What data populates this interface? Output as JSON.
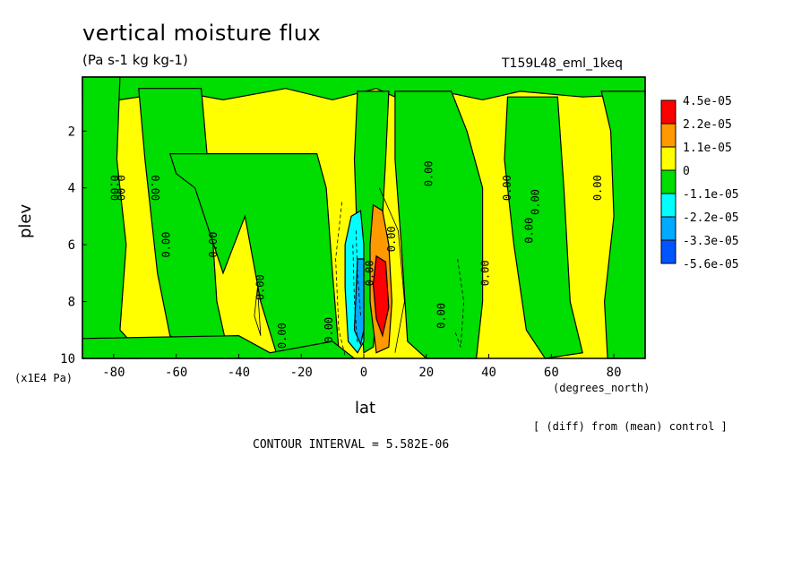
{
  "chart_data": {
    "type": "heatmap",
    "title": "vertical moisture flux",
    "units": "(Pa s-1 kg kg-1)",
    "run_label": "T159L48_eml_1keq",
    "xlabel": "lat",
    "x_unit": "(degrees_north)",
    "ylabel": "plev",
    "y_unit": "(x1E4 Pa)",
    "xlim": [
      -90,
      90
    ],
    "ylim": [
      10,
      0.1
    ],
    "x_ticks": [
      -80,
      -60,
      -40,
      -20,
      0,
      20,
      40,
      60,
      80
    ],
    "x_tick_labels": [
      "-80",
      "-60",
      "-40",
      "-20",
      "0",
      "20",
      "40",
      "60",
      "80"
    ],
    "y_ticks": [
      2,
      4,
      6,
      8,
      10
    ],
    "y_tick_labels": [
      "2",
      "4",
      "6",
      "8",
      "10"
    ],
    "note": "[ (diff) from (mean) control ]",
    "contour_interval": "CONTOUR INTERVAL = 5.582E-06",
    "contour_label": "0.00",
    "legend": {
      "placement": "right",
      "levels": [
        "4.5e-05",
        "2.2e-05",
        "1.1e-05",
        "0",
        "-1.1e-05",
        "-2.2e-05",
        "-3.3e-05",
        "-5.6e-05"
      ],
      "colors": [
        "#ff0000",
        "#ff9900",
        "#ffff00",
        "#00dd00",
        "#00ffff",
        "#00aaff",
        "#0055ff"
      ]
    },
    "regions": [
      {
        "kind": "green",
        "lat_range": [
          -90,
          -78
        ],
        "plev_range": [
          0.1,
          10
        ]
      },
      {
        "kind": "green",
        "lat_range": [
          -72,
          -50
        ],
        "plev_range": [
          0.1,
          9.5
        ]
      },
      {
        "kind": "green",
        "lat_range": [
          -30,
          -10
        ],
        "plev_range": [
          4,
          10
        ]
      },
      {
        "kind": "green",
        "lat_range": [
          10,
          30
        ],
        "plev_range": [
          0.1,
          10
        ]
      },
      {
        "kind": "green",
        "lat_range": [
          50,
          70
        ],
        "plev_range": [
          0.1,
          10
        ]
      },
      {
        "kind": "green",
        "lat_range": [
          80,
          90
        ],
        "plev_range": [
          0.1,
          10
        ]
      },
      {
        "kind": "blue",
        "lat_range": [
          -5,
          0
        ],
        "plev_range": [
          5,
          9.5
        ]
      },
      {
        "kind": "orange",
        "lat_range": [
          2,
          10
        ],
        "plev_range": [
          5,
          9.5
        ]
      },
      {
        "kind": "red",
        "lat_range": [
          4,
          8
        ],
        "plev_range": [
          7,
          9
        ]
      }
    ]
  }
}
